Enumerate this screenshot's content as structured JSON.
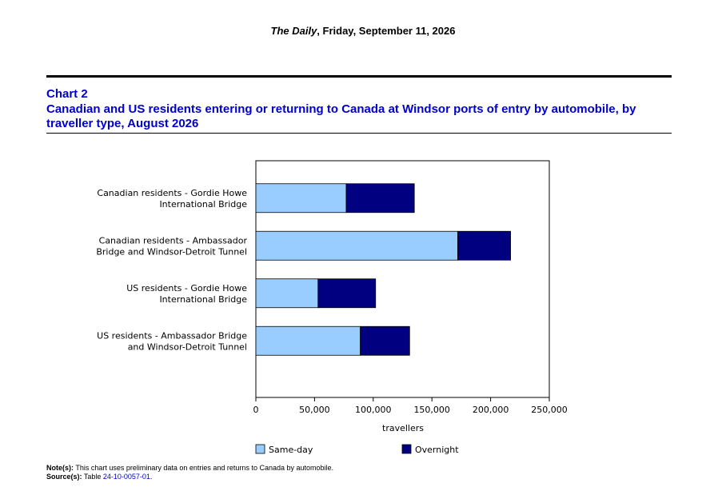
{
  "header": {
    "publication": "The Daily",
    "date": ", Friday, September 11, 2026"
  },
  "chart_label": "Chart 2",
  "chart_title": "Canadian and US residents entering or returning to Canada at Windsor ports of entry by automobile, by traveller type, August 2026",
  "chart_data": {
    "type": "bar",
    "orientation": "horizontal",
    "stacked": true,
    "categories": [
      [
        "Canadian residents - Gordie Howe",
        "International Bridge"
      ],
      [
        "Canadian residents - Ambassador",
        "Bridge and Windsor-Detroit Tunnel"
      ],
      [
        "US residents - Gordie Howe",
        "International Bridge"
      ],
      [
        "US residents - Ambassador Bridge",
        "and Windsor-Detroit Tunnel"
      ]
    ],
    "series": [
      {
        "name": "Same-day",
        "color": "#99ccff",
        "values": [
          77000,
          172000,
          53000,
          89000
        ]
      },
      {
        "name": "Overnight",
        "color": "#000080",
        "values": [
          58000,
          45000,
          49000,
          42000
        ]
      }
    ],
    "xlabel": "travellers",
    "xlim": [
      0,
      250000
    ],
    "xticks": [
      0,
      50000,
      100000,
      150000,
      200000,
      250000
    ],
    "xtick_labels": [
      "0",
      "50,000",
      "100,000",
      "150,000",
      "200,000",
      "250,000"
    ],
    "grid": false,
    "legend_position": "bottom"
  },
  "note": {
    "label": "Note(s):",
    "text": " This chart uses preliminary data on entries and returns to Canada by automobile."
  },
  "source": {
    "label": "Source(s):",
    "text_before": " Table ",
    "link": "24-10-0057-01",
    "text_after": "."
  }
}
